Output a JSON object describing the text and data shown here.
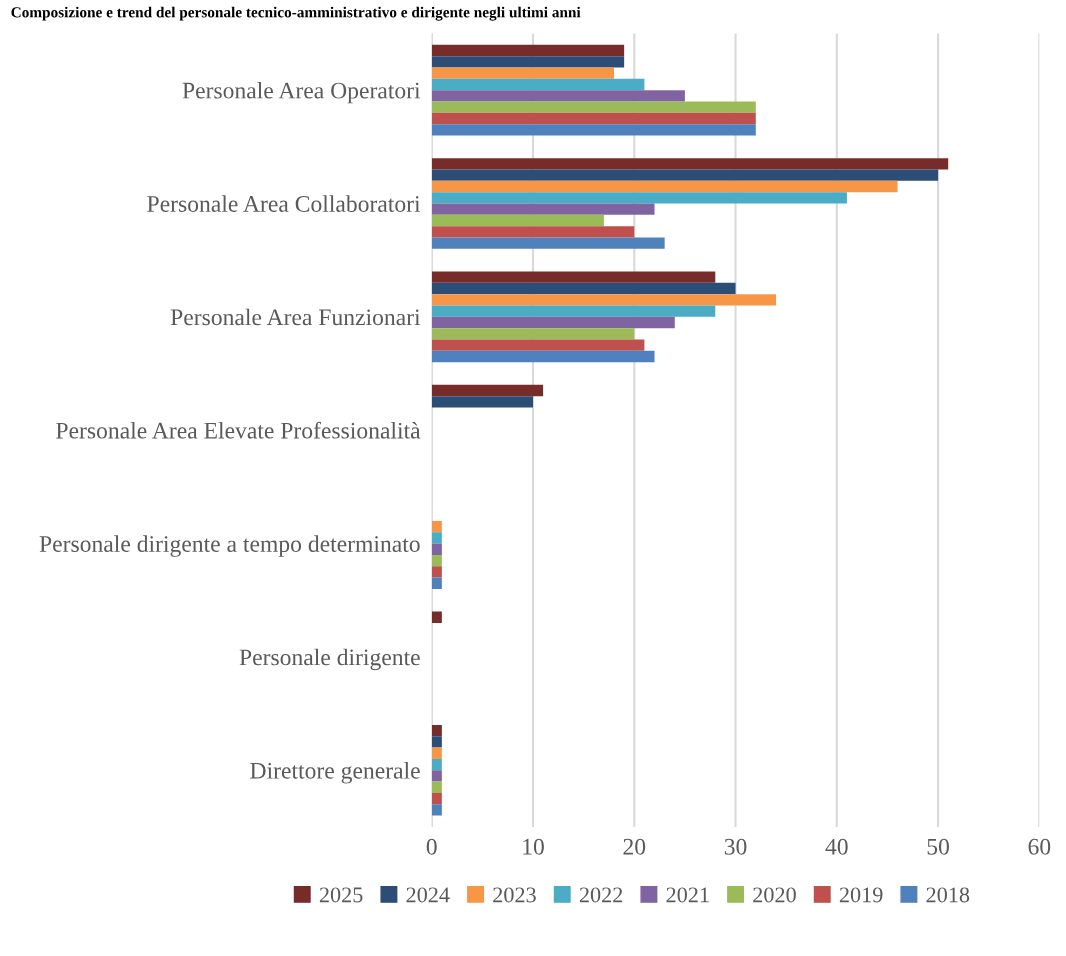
{
  "chart_data": {
    "type": "bar",
    "orientation": "horizontal",
    "title": "Composizione e trend del personale tecnico-amministrativo e dirigente negli ultimi anni",
    "categories": [
      "Personale Area Operatori",
      "Personale Area Collaboratori",
      "Personale Area Funzionari",
      "Personale Area Elevate Professionalità",
      "Personale dirigente a tempo determinato",
      "Personale dirigente",
      "Direttore generale"
    ],
    "series": [
      {
        "name": "2025",
        "color": "#772c2a",
        "values": [
          19,
          51,
          28,
          11,
          null,
          1,
          1
        ]
      },
      {
        "name": "2024",
        "color": "#2c4d75",
        "values": [
          19,
          50,
          30,
          10,
          null,
          null,
          1
        ]
      },
      {
        "name": "2023",
        "color": "#f79646",
        "values": [
          18,
          46,
          34,
          null,
          1,
          null,
          1
        ]
      },
      {
        "name": "2022",
        "color": "#4bacc6",
        "values": [
          21,
          41,
          28,
          null,
          1,
          null,
          1
        ]
      },
      {
        "name": "2021",
        "color": "#8064a2",
        "values": [
          25,
          22,
          24,
          null,
          1,
          null,
          1
        ]
      },
      {
        "name": "2020",
        "color": "#9bbb59",
        "values": [
          32,
          17,
          20,
          null,
          1,
          null,
          1
        ]
      },
      {
        "name": "2019",
        "color": "#c0504d",
        "values": [
          32,
          20,
          21,
          null,
          1,
          null,
          1
        ]
      },
      {
        "name": "2018",
        "color": "#4f81bd",
        "values": [
          32,
          23,
          22,
          null,
          1,
          null,
          1
        ]
      }
    ],
    "xlim": [
      0,
      60
    ],
    "xticks": [
      0,
      10,
      20,
      30,
      40,
      50,
      60
    ],
    "grid": "x",
    "legend": "bottom"
  }
}
